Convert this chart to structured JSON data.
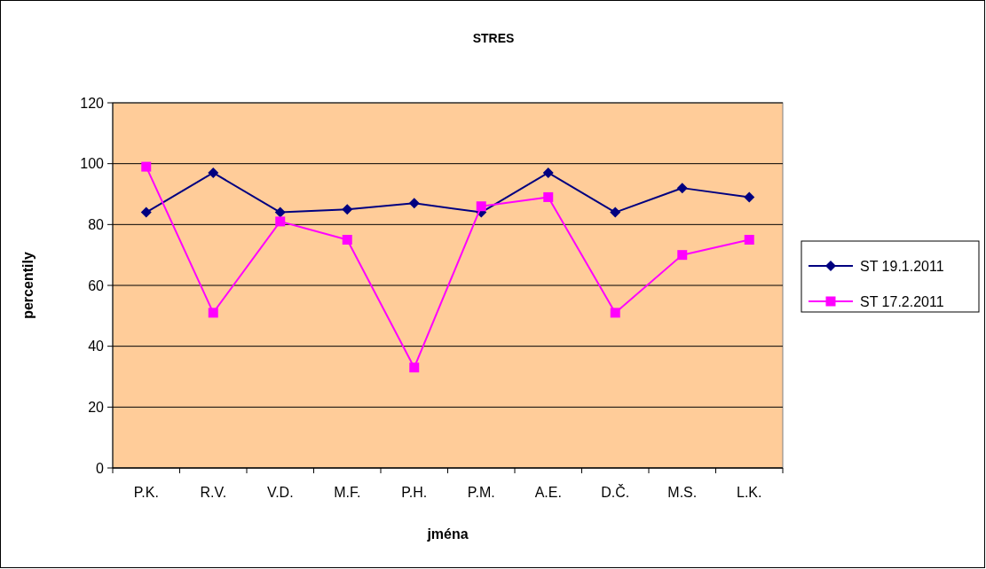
{
  "chart_data": {
    "type": "line",
    "title": "STRES",
    "xlabel": "jména",
    "ylabel": "percentily",
    "categories": [
      "P.K.",
      "R.V.",
      "V.D.",
      "M.F.",
      "P.H.",
      "P.M.",
      "A.E.",
      "D.Č.",
      "M.S.",
      "L.K."
    ],
    "series": [
      {
        "name": "ST 19.1.2011",
        "color": "#000080",
        "marker": "diamond",
        "values": [
          84,
          97,
          84,
          85,
          87,
          84,
          97,
          84,
          92,
          89
        ]
      },
      {
        "name": "ST 17.2.2011",
        "color": "#ff00ff",
        "marker": "square",
        "values": [
          99,
          51,
          81,
          75,
          33,
          86,
          89,
          51,
          70,
          75
        ]
      }
    ],
    "ylim": [
      0,
      120
    ],
    "yticks": [
      0,
      20,
      40,
      60,
      80,
      100,
      120
    ],
    "grid": "y",
    "legend": "right"
  }
}
